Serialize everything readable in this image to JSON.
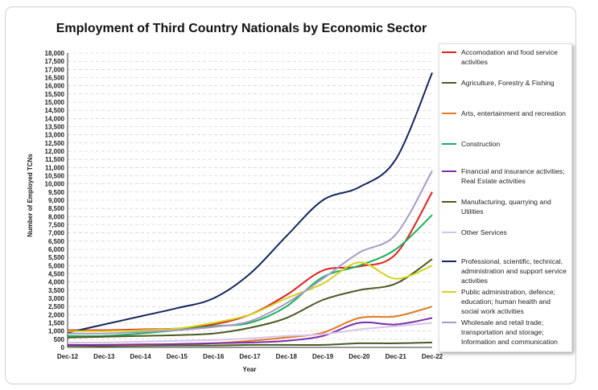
{
  "chart_data": {
    "type": "line",
    "title": "Employment of Third Country Nationals by Economic Sector",
    "xlabel": "Year",
    "ylabel": "Number of Employed TCNs",
    "ylim": [
      0,
      18000
    ],
    "ytick_step": 500,
    "grid": true,
    "legend_position": "right",
    "categories": [
      "Dec-12",
      "Dec-13",
      "Dec-14",
      "Dec-15",
      "Dec-16",
      "Dec-17",
      "Dec-18",
      "Dec-19",
      "Dec-20",
      "Dec-21",
      "Dec-22"
    ],
    "series": [
      {
        "name": "Accomodation and food service activities",
        "color": "#e0201c",
        "values": [
          1050,
          1050,
          1100,
          1150,
          1400,
          2000,
          3200,
          4700,
          4950,
          5700,
          9500
        ]
      },
      {
        "name": "Agriculture, Forestry & Fishing",
        "color": "#4a5a24",
        "values": [
          100,
          80,
          100,
          120,
          120,
          150,
          150,
          150,
          250,
          250,
          300
        ]
      },
      {
        "name": "Arts, entertainment and recreation",
        "color": "#e07b26",
        "values": [
          150,
          150,
          150,
          200,
          250,
          400,
          600,
          900,
          1800,
          1900,
          2500
        ]
      },
      {
        "name": "Construction",
        "color": "#1bb05a",
        "values": [
          700,
          700,
          850,
          1050,
          1300,
          1500,
          2500,
          4300,
          5000,
          6000,
          8100
        ]
      },
      {
        "name": "Financial and insurance activities; Real Estate activities",
        "color": "#7a2fa8",
        "values": [
          150,
          150,
          180,
          200,
          250,
          300,
          400,
          700,
          1500,
          1400,
          1800
        ]
      },
      {
        "name": "Manufacturing, quarrying and Utilities",
        "color": "#4c5a22",
        "values": [
          600,
          650,
          700,
          750,
          850,
          1200,
          1800,
          2900,
          3500,
          3900,
          5400
        ]
      },
      {
        "name": "Other Services",
        "color": "#d8c4ea",
        "values": [
          300,
          300,
          350,
          400,
          450,
          550,
          700,
          800,
          1100,
          1300,
          1500
        ]
      },
      {
        "name": "Professional, scientific, technical, administration and support service activities",
        "color": "#14265c",
        "values": [
          900,
          1400,
          1900,
          2400,
          3000,
          4500,
          6800,
          9000,
          9800,
          11500,
          16800
        ]
      },
      {
        "name": "Public administration, defence; education; human health and social work activities",
        "color": "#d2d21c",
        "values": [
          1000,
          1000,
          1050,
          1150,
          1500,
          2000,
          3000,
          3900,
          5200,
          4200,
          5000
        ]
      },
      {
        "name": "Wholesale and retail trade; transportation and storage; Information and communication",
        "color": "#a79bc7",
        "values": [
          850,
          850,
          950,
          1050,
          1250,
          1600,
          2700,
          4200,
          5800,
          6900,
          10800
        ]
      }
    ]
  }
}
